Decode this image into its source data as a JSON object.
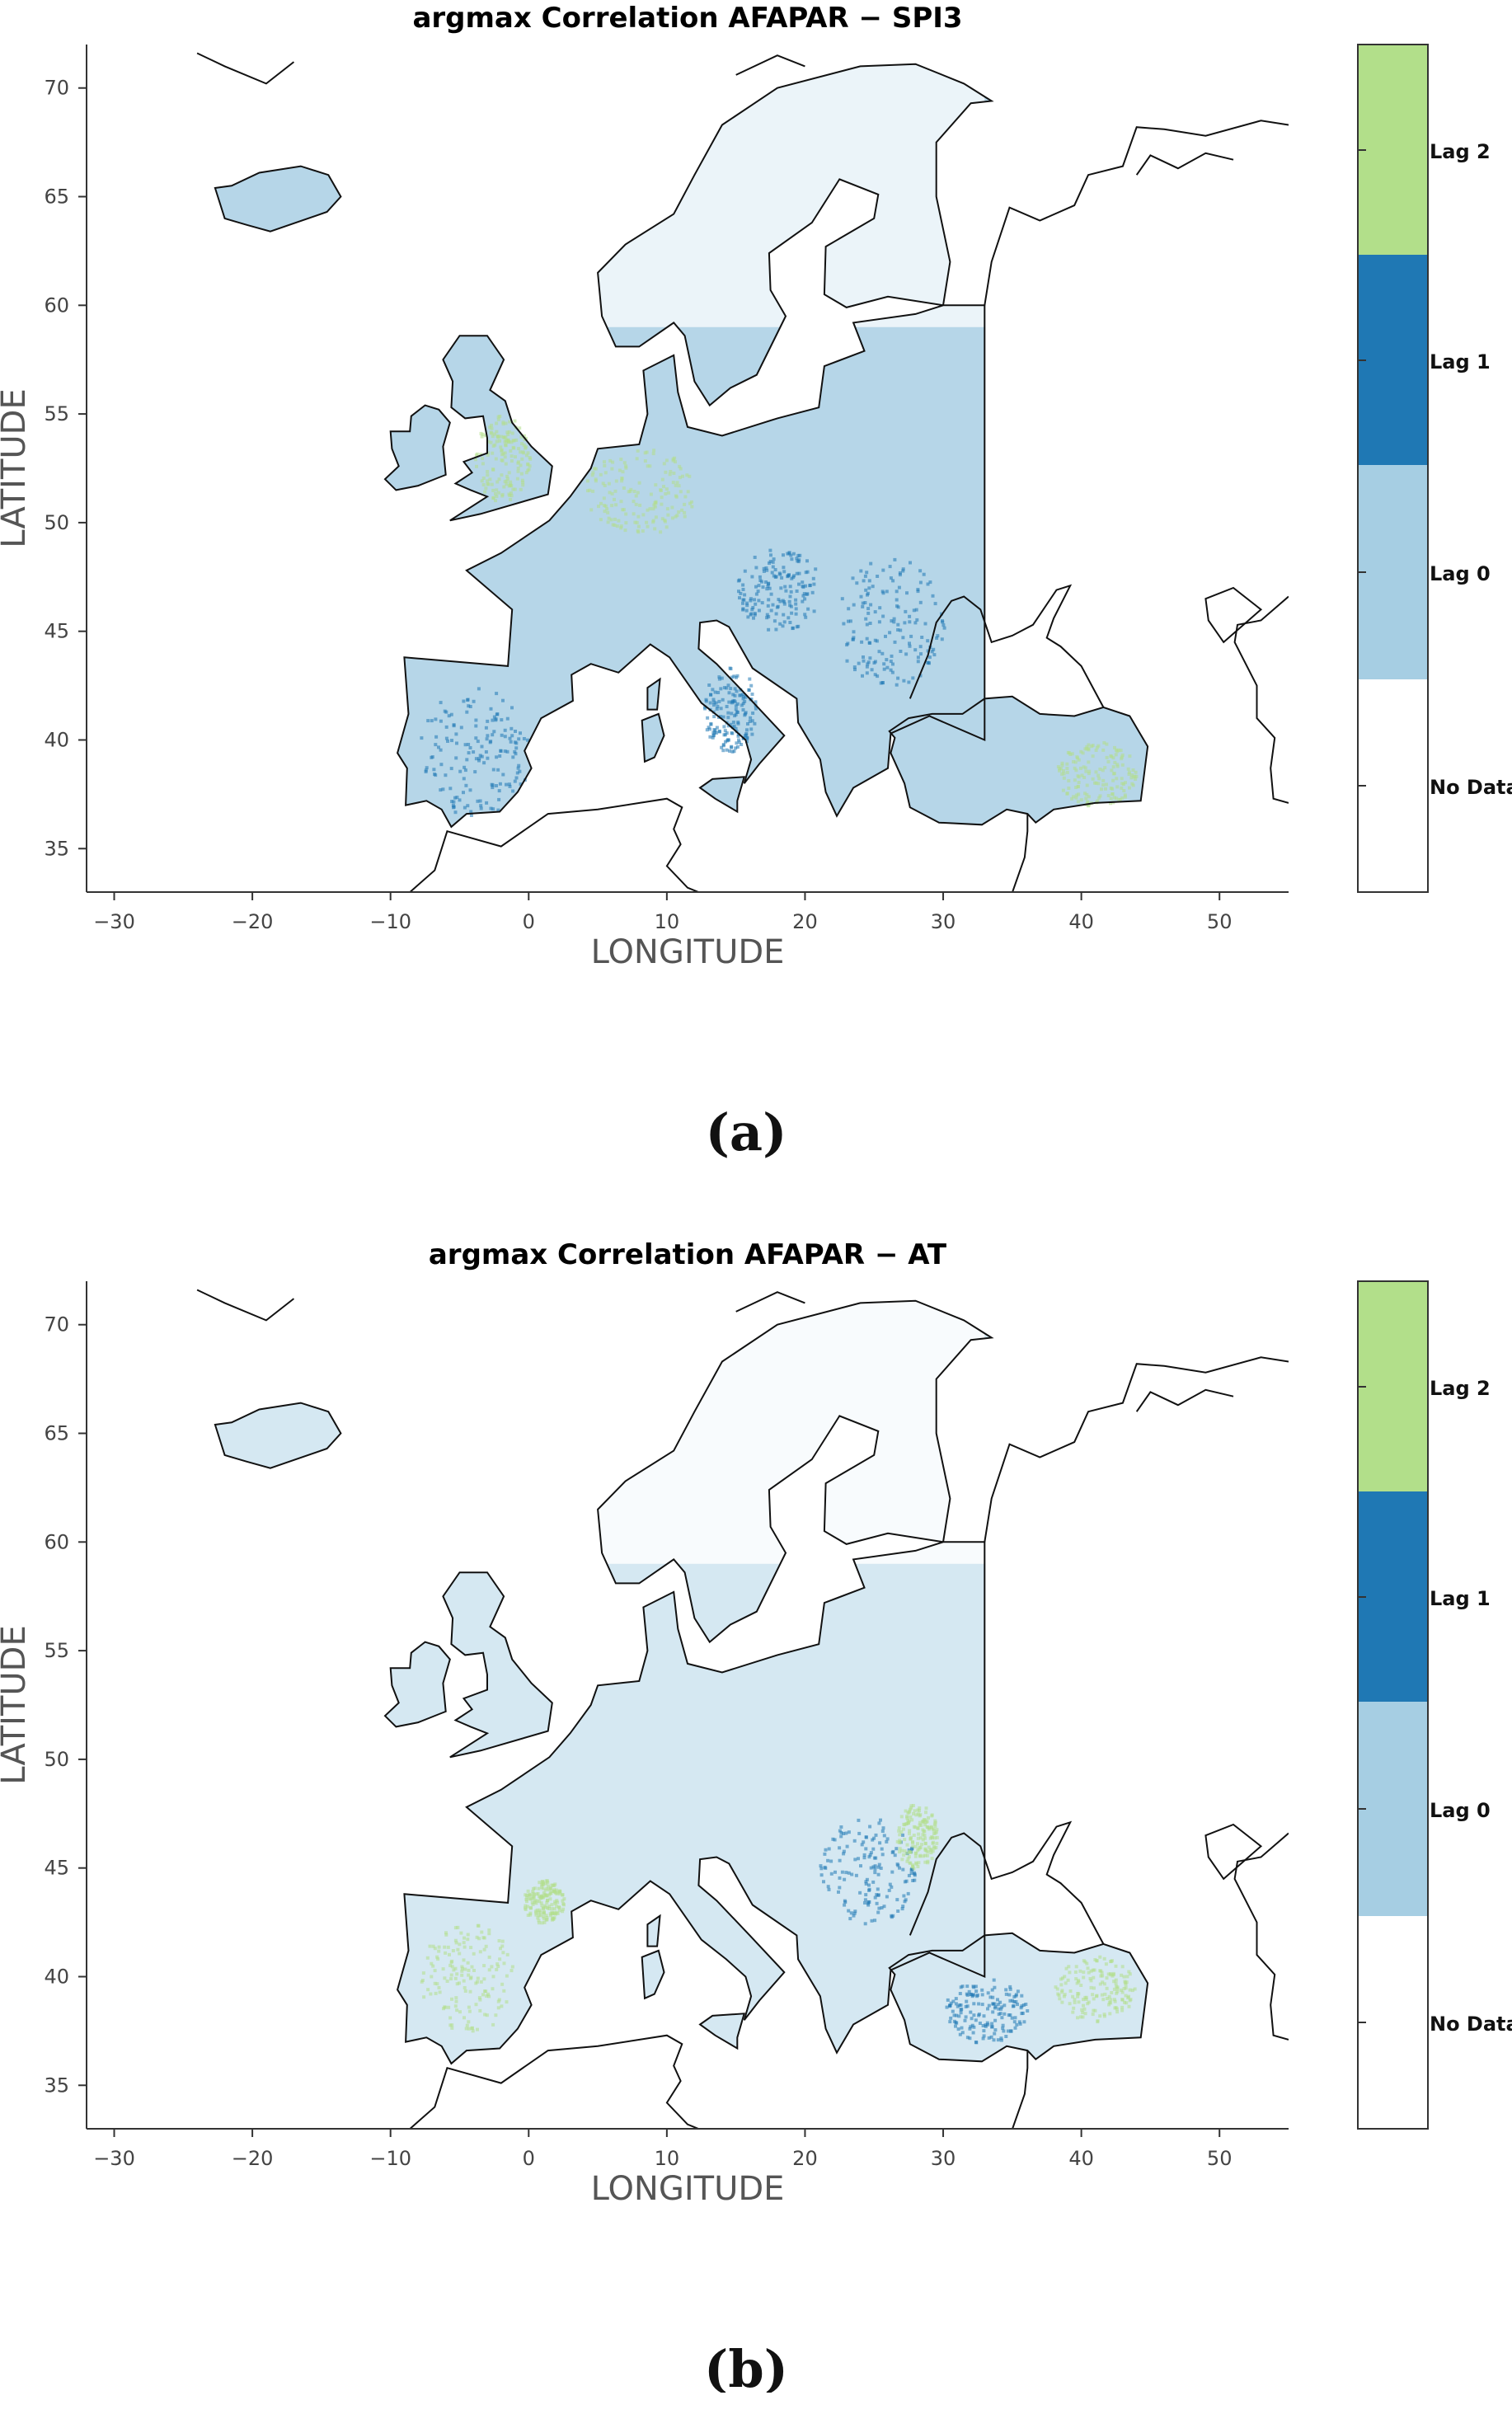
{
  "figure": {
    "panels": [
      {
        "caption": "(a)",
        "title": "argmax Correlation AFAPAR − SPI3",
        "variant": "spi3"
      },
      {
        "caption": "(b)",
        "title": "argmax Correlation AFAPAR − AT",
        "variant": "at"
      }
    ]
  },
  "axes": {
    "xlabel": "LONGITUDE",
    "ylabel": "LATITUDE",
    "xlim": [
      -32,
      55
    ],
    "ylim": [
      33,
      72
    ],
    "xticks": [
      -30,
      -20,
      -10,
      0,
      10,
      20,
      30,
      40,
      50
    ],
    "yticks": [
      35,
      40,
      45,
      50,
      55,
      60,
      65,
      70
    ]
  },
  "legend": {
    "placement": "right",
    "entries": [
      {
        "label": "Lag 2",
        "color": "#b2df8a"
      },
      {
        "label": "Lag 1",
        "color": "#1f78b4"
      },
      {
        "label": "Lag 0",
        "color": "#a6cee3"
      },
      {
        "label": "No Data",
        "color": "#ffffff"
      }
    ]
  },
  "colors": {
    "lag0": "#a6cee3",
    "lag1": "#1f78b4",
    "lag2": "#b2df8a",
    "coast": "#111111"
  }
}
